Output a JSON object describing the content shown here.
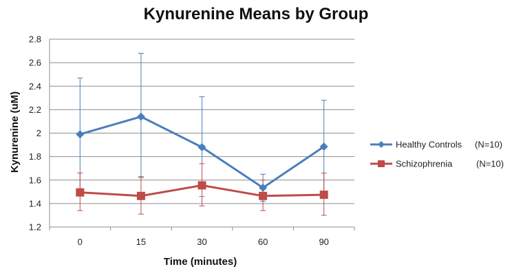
{
  "chart_data": {
    "type": "line",
    "title": "Kynurenine Means by Group",
    "xlabel": "Time (minutes)",
    "ylabel": "Kynurenine (uM)",
    "categories": [
      "0",
      "15",
      "30",
      "60",
      "90"
    ],
    "ylim": [
      1.2,
      2.8
    ],
    "yticks": [
      "1.2",
      "1.4",
      "1.6",
      "1.8",
      "2",
      "2.2",
      "2.4",
      "2.6",
      "2.8"
    ],
    "grid": "horizontal",
    "legend_position": "right",
    "series": [
      {
        "name": "Healthy Controls",
        "n_label": "(N=10)",
        "color": "#4a7ebb",
        "marker": "diamond",
        "values": [
          1.99,
          2.14,
          1.88,
          1.535,
          1.885
        ],
        "err_upper": [
          2.47,
          2.68,
          2.31,
          1.65,
          2.28
        ],
        "err_lower": [
          1.5,
          1.62,
          1.46,
          1.42,
          1.49
        ]
      },
      {
        "name": "Schizophrenia",
        "n_label": "(N=10)",
        "color": "#be4b48",
        "marker": "square",
        "values": [
          1.495,
          1.465,
          1.555,
          1.465,
          1.475
        ],
        "err_upper": [
          1.66,
          1.63,
          1.74,
          1.6,
          1.66
        ],
        "err_lower": [
          1.34,
          1.31,
          1.38,
          1.34,
          1.3
        ]
      }
    ]
  }
}
